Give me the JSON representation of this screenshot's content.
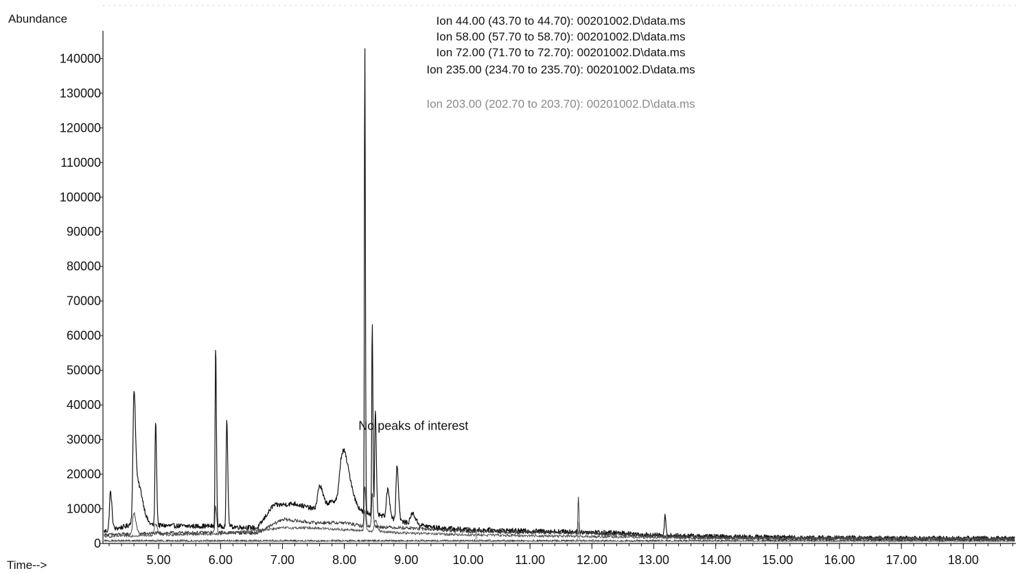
{
  "chart_data": {
    "type": "line",
    "ylabel": "Abundance",
    "xlabel": "Time-->",
    "xlim": [
      4.1,
      18.85
    ],
    "ylim": [
      0,
      148000
    ],
    "x_ticks": [
      5.0,
      6.0,
      7.0,
      8.0,
      9.0,
      10.0,
      11.0,
      12.0,
      13.0,
      14.0,
      15.0,
      16.0,
      17.0,
      18.0
    ],
    "x_tick_labels": [
      "5.00",
      "6.00",
      "7.00",
      "8.00",
      "9.00",
      "10.00",
      "11.00",
      "12.00",
      "13.00",
      "14.00",
      "15.00",
      "16.00",
      "17.00",
      "18.00"
    ],
    "y_ticks": [
      0,
      10000,
      20000,
      30000,
      40000,
      50000,
      60000,
      70000,
      80000,
      90000,
      100000,
      110000,
      120000,
      130000,
      140000
    ],
    "y_tick_labels": [
      "0",
      "10000",
      "20000",
      "30000",
      "40000",
      "50000",
      "60000",
      "70000",
      "80000",
      "90000",
      "100000",
      "110000",
      "120000",
      "130000",
      "140000"
    ],
    "grid": false,
    "legend_position": "top-center",
    "annotations": [
      {
        "text": "No peaks of interest",
        "x": 8.25,
        "y": 34000
      }
    ],
    "series": [
      {
        "name": "Ion  44.00 (43.70 to 44.70): 00201002.D\\data.ms",
        "color": "#111111",
        "baseline": [
          [
            4.12,
            3500
          ],
          [
            4.6,
            5500
          ],
          [
            5.0,
            5200
          ],
          [
            5.5,
            5000
          ],
          [
            6.0,
            5000
          ],
          [
            6.6,
            4500
          ],
          [
            6.85,
            11000
          ],
          [
            7.2,
            11500
          ],
          [
            7.5,
            10000
          ],
          [
            7.8,
            12000
          ],
          [
            8.0,
            14000
          ],
          [
            8.3,
            9000
          ],
          [
            8.6,
            8000
          ],
          [
            9.0,
            6000
          ],
          [
            9.5,
            4500
          ],
          [
            10.0,
            4000
          ],
          [
            11.0,
            3600
          ],
          [
            12.0,
            3300
          ],
          [
            12.5,
            3000
          ],
          [
            13.0,
            2400
          ],
          [
            14.0,
            2000
          ],
          [
            15.0,
            1800
          ],
          [
            16.0,
            1600
          ],
          [
            17.0,
            1500
          ],
          [
            18.0,
            1500
          ],
          [
            18.85,
            1500
          ]
        ],
        "peaks": [
          [
            4.22,
            11000,
            0.015
          ],
          [
            4.6,
            33000,
            0.015
          ],
          [
            4.66,
            12000,
            0.05
          ],
          [
            4.95,
            30000,
            0.01
          ],
          [
            5.92,
            52000,
            0.008
          ],
          [
            6.1,
            31000,
            0.01
          ],
          [
            7.6,
            6000,
            0.03
          ],
          [
            7.95,
            9000,
            0.03
          ],
          [
            8.03,
            9000,
            0.05
          ],
          [
            8.33,
            138000,
            0.006
          ],
          [
            8.45,
            57000,
            0.007
          ],
          [
            8.5,
            30000,
            0.01
          ],
          [
            8.7,
            8000,
            0.02
          ],
          [
            8.85,
            16000,
            0.015
          ],
          [
            9.1,
            3000,
            0.03
          ],
          [
            13.18,
            5500,
            0.01
          ]
        ],
        "noise": 700
      },
      {
        "name": "Ion  58.00 (57.70 to 58.70): 00201002.D\\data.ms",
        "color": "#3a3a3a",
        "baseline": [
          [
            4.12,
            2500
          ],
          [
            5.0,
            3000
          ],
          [
            6.0,
            3200
          ],
          [
            6.6,
            3000
          ],
          [
            7.0,
            7000
          ],
          [
            7.5,
            6000
          ],
          [
            8.0,
            6000
          ],
          [
            8.3,
            5000
          ],
          [
            9.0,
            4500
          ],
          [
            10.0,
            3500
          ],
          [
            12.0,
            3000
          ],
          [
            13.0,
            2200
          ],
          [
            14.0,
            1800
          ],
          [
            15.0,
            1500
          ],
          [
            18.85,
            1400
          ]
        ],
        "peaks": [
          [
            4.6,
            6000,
            0.02
          ],
          [
            5.92,
            8000,
            0.01
          ],
          [
            8.33,
            12000,
            0.01
          ],
          [
            8.45,
            10000,
            0.01
          ],
          [
            11.78,
            11000,
            0.006
          ]
        ],
        "noise": 500
      },
      {
        "name": "Ion  72.00 (71.70 to 72.70): 00201002.D\\data.ms",
        "color": "#555555",
        "baseline": [
          [
            4.12,
            2000
          ],
          [
            5.0,
            2500
          ],
          [
            6.0,
            2800
          ],
          [
            7.0,
            4500
          ],
          [
            7.5,
            4500
          ],
          [
            8.0,
            4000
          ],
          [
            8.5,
            3500
          ],
          [
            9.0,
            3000
          ],
          [
            10.0,
            2500
          ],
          [
            12.0,
            2000
          ],
          [
            14.0,
            1500
          ],
          [
            18.85,
            1200
          ]
        ],
        "peaks": [
          [
            4.95,
            3000,
            0.02
          ],
          [
            8.33,
            6000,
            0.01
          ],
          [
            8.5,
            3000,
            0.02
          ]
        ],
        "noise": 400
      },
      {
        "name": "Ion 235.00 (234.70 to 235.70): 00201002.D\\data.ms",
        "color": "#222222",
        "baseline": [
          [
            4.12,
            800
          ],
          [
            18.85,
            800
          ]
        ],
        "peaks": [],
        "noise": 250
      },
      {
        "name": "Ion 203.00 (202.70 to 203.70): 00201002.D\\data.ms",
        "color": "#9a9a9a",
        "baseline": [
          [
            4.12,
            600
          ],
          [
            18.85,
            600
          ]
        ],
        "peaks": [
          [
            10.13,
            3500,
            0.005
          ],
          [
            11.78,
            6000,
            0.005
          ]
        ],
        "noise": 200
      }
    ]
  }
}
